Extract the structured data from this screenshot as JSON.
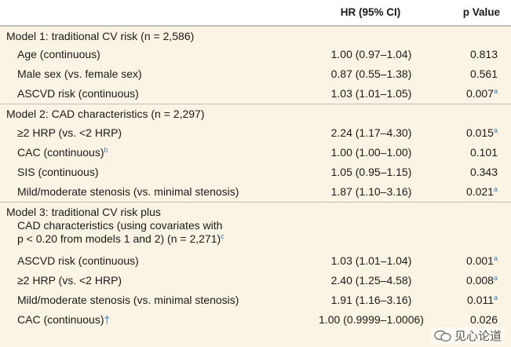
{
  "header": {
    "hr_label": "HR (95% CI)",
    "p_label": "p Value"
  },
  "model1": {
    "title": "Model 1: traditional CV risk (n = 2,586)",
    "rows": [
      {
        "label": "Age (continuous)",
        "hr": "1.00 (0.97–1.04)",
        "p": "0.813",
        "sup": ""
      },
      {
        "label": "Male sex (vs. female sex)",
        "hr": "0.87 (0.55–1.38)",
        "p": "0.561",
        "sup": ""
      },
      {
        "label": "ASCVD risk (continuous)",
        "hr": "1.03 (1.01–1.05)",
        "p": "0.007",
        "sup": "a"
      }
    ]
  },
  "model2": {
    "title": "Model 2: CAD characteristics (n = 2,297)",
    "rows": [
      {
        "label": "≥2 HRP (vs. <2 HRP)",
        "hr": "2.24 (1.17–4.30)",
        "p": "0.015",
        "sup": "a"
      },
      {
        "label": "CAC (continuous)",
        "label_sup": "b",
        "hr": "1.00 (1.00–1.00)",
        "p": "0.101",
        "sup": ""
      },
      {
        "label": "SIS (continuous)",
        "hr": "1.05 (0.95–1.15)",
        "p": "0.343",
        "sup": ""
      },
      {
        "label": "Mild/moderate stenosis (vs. minimal stenosis)",
        "hr": "1.87 (1.10–3.16)",
        "p": "0.021",
        "sup": "a"
      }
    ]
  },
  "model3": {
    "title_line1": "Model 3: traditional CV risk plus",
    "title_line2": "CAD characteristics (using covariates with",
    "title_line3": "p < 0.20 from models 1 and 2) (n = 2,271)",
    "title_sup": "c",
    "rows": [
      {
        "label": "ASCVD risk (continuous)",
        "hr": "1.03 (1.01–1.04)",
        "p": "0.001",
        "sup": "a"
      },
      {
        "label": "≥2 HRP (vs. <2 HRP)",
        "hr": "2.40 (1.25–4.58)",
        "p": "0.008",
        "sup": "a"
      },
      {
        "label": "Mild/moderate stenosis (vs. minimal stenosis)",
        "hr": "1.91 (1.16–3.16)",
        "p": "0.011",
        "sup": "a"
      },
      {
        "label": "CAC (continuous)",
        "label_mark": "†",
        "hr": "1.00 (0.9999–1.0006)",
        "p": "0.026",
        "sup": ""
      }
    ]
  },
  "watermark": {
    "text": "见心论道"
  },
  "colors": {
    "row_bg": "#fbf4e4",
    "accent": "#3a7fc1"
  }
}
